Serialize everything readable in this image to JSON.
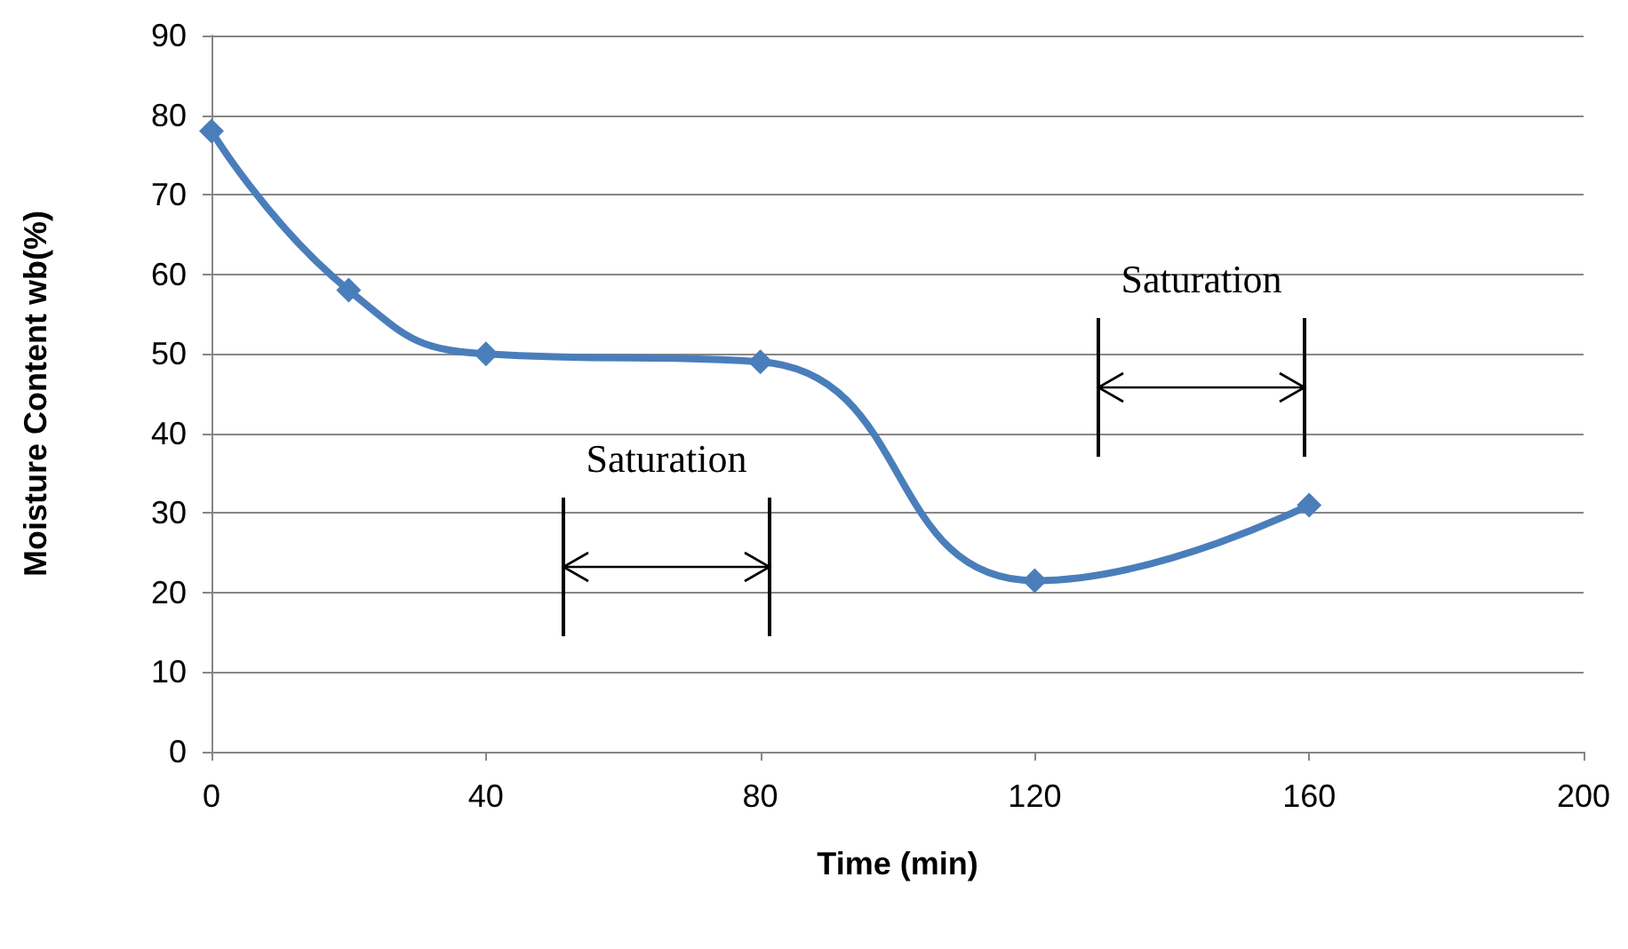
{
  "chart_data": {
    "type": "line",
    "xlabel": "Time (min)",
    "ylabel": "Moisture Content wb(%)",
    "x": [
      0,
      20,
      40,
      80,
      120,
      160
    ],
    "series": [
      {
        "color": "#4a7ebb",
        "values": [
          78,
          58,
          50,
          49,
          21.5,
          31
        ]
      }
    ],
    "xlim": [
      0,
      200
    ],
    "xticks": [
      0,
      40,
      80,
      120,
      160,
      200
    ],
    "ylim": [
      0,
      90
    ],
    "yticks": [
      0,
      10,
      20,
      30,
      40,
      50,
      60,
      70,
      80,
      90
    ],
    "grid": "y",
    "marker": "diamond",
    "line_style": "solid",
    "annotations": [
      "Saturation",
      "Saturation"
    ]
  }
}
